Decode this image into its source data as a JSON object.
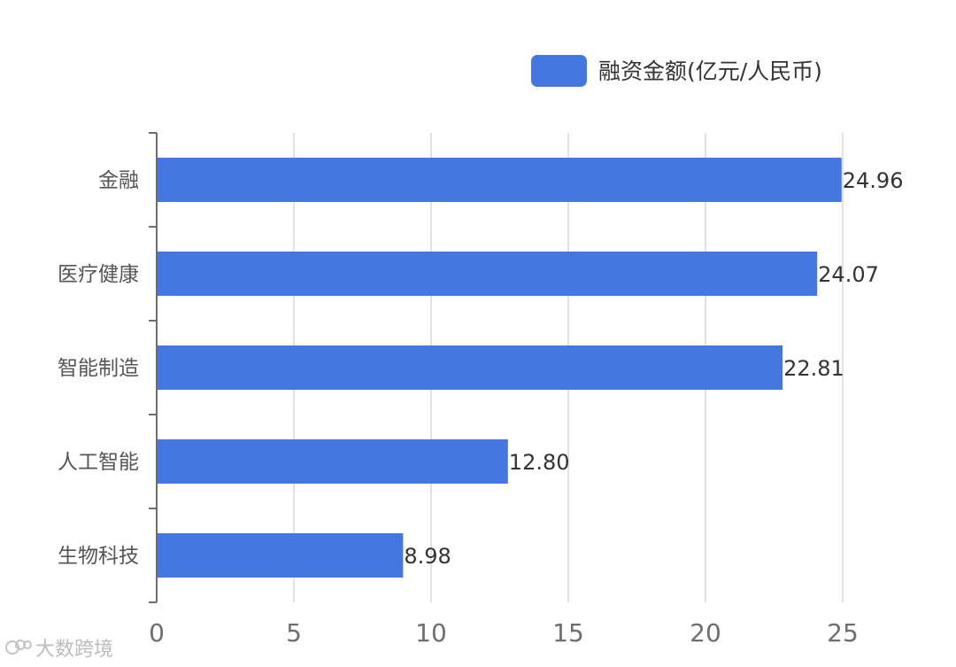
{
  "chart_data": {
    "type": "bar",
    "orientation": "horizontal",
    "categories": [
      "金融",
      "医疗健康",
      "智能制造",
      "人工智能",
      "生物科技"
    ],
    "series": [
      {
        "name": "融资金额(亿元/人民币)",
        "values": [
          24.96,
          24.07,
          22.81,
          12.8,
          8.98
        ],
        "labels": [
          "24.96",
          "24.07",
          "22.81",
          "12.80",
          "8.98"
        ]
      }
    ],
    "xlim": [
      0,
      25
    ],
    "xticks": [
      0,
      5,
      10,
      15,
      20,
      25
    ],
    "grid": true,
    "legend_position": "top-right",
    "bar_color": "#4478e0",
    "grid_color": "#e2e2e6",
    "axis_color": "#6e6e6e"
  },
  "watermark": {
    "text": "大数跨境"
  }
}
